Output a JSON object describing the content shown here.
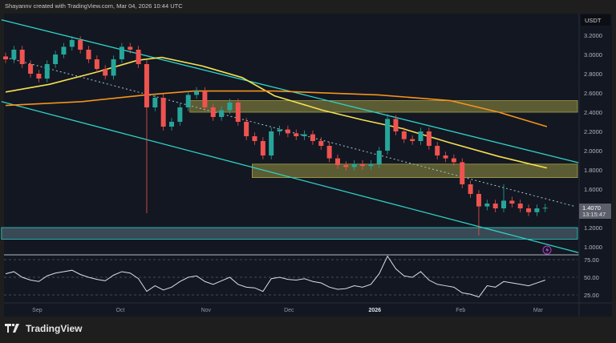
{
  "header": {
    "attribution": "Shayannv created with TradingView.com, Mar 04, 2026 10:44 UTC"
  },
  "footer": {
    "logo_text": "TradingView"
  },
  "colors": {
    "background": "#131722",
    "up": "#26a69a",
    "down": "#ef5350",
    "ma_fast": "#f5e050",
    "ma_slow": "#f7931a",
    "channel": "#2ed3c6",
    "zone": "#7a7a3a",
    "support_zone": "#3e4f5c",
    "rsi": "#d8dde8"
  },
  "chart_data": {
    "type": "candlestick",
    "currency_label": "USDT",
    "start_date": "2025-08-20",
    "candle_interval_days": 3,
    "ylim": [
      0.92,
      3.3
    ],
    "y_ticks": [
      "3.2000",
      "3.0000",
      "2.8000",
      "2.6000",
      "2.4000",
      "2.2000",
      "2.0000",
      "1.8000",
      "1.6000",
      "1.2000",
      "1.0000"
    ],
    "y_tick_values": [
      3.2,
      3.0,
      2.8,
      2.6,
      2.4,
      2.2,
      2.0,
      1.8,
      1.6,
      1.2,
      1.0
    ],
    "x_ticks": [
      {
        "label": "Sep",
        "date": "2025-09-01"
      },
      {
        "label": "Oct",
        "date": "2025-10-01"
      },
      {
        "label": "Nov",
        "date": "2025-11-01"
      },
      {
        "label": "Dec",
        "date": "2025-12-01"
      },
      {
        "label": "2026",
        "date": "2026-01-01",
        "bold": true
      },
      {
        "label": "Feb",
        "date": "2026-02-01"
      },
      {
        "label": "Mar",
        "date": "2026-03-01"
      }
    ],
    "closes": [
      2.95,
      3.05,
      2.9,
      2.8,
      2.75,
      2.9,
      3.0,
      3.08,
      3.15,
      3.05,
      2.95,
      2.85,
      2.78,
      2.95,
      3.08,
      3.05,
      2.9,
      2.45,
      2.55,
      2.25,
      2.3,
      2.45,
      2.58,
      2.62,
      2.45,
      2.35,
      2.42,
      2.5,
      2.3,
      2.15,
      2.1,
      1.95,
      2.2,
      2.22,
      2.18,
      2.15,
      2.17,
      2.1,
      2.05,
      1.92,
      1.85,
      1.83,
      1.86,
      1.84,
      1.86,
      2.0,
      2.33,
      2.2,
      2.12,
      2.1,
      2.2,
      2.05,
      1.95,
      1.92,
      1.88,
      1.65,
      1.55,
      1.42,
      1.45,
      1.4,
      1.48,
      1.45,
      1.4,
      1.36,
      1.4,
      1.407
    ],
    "wick_extremes": [
      {
        "index": 17,
        "low": 1.35
      },
      {
        "index": 57,
        "low": 1.12
      },
      {
        "index": 60,
        "high": 1.65
      },
      {
        "index": 46,
        "high": 2.38
      }
    ],
    "last_price": {
      "value": "1.4070",
      "countdown": "13:15:47"
    },
    "moving_averages": [
      {
        "color": "#f5e050",
        "points": [
          [
            0,
            2.61
          ],
          [
            5.3,
            2.69
          ],
          [
            11.1,
            2.82
          ],
          [
            15.9,
            2.94
          ],
          [
            18.8,
            2.97
          ],
          [
            23.7,
            2.88
          ],
          [
            28.5,
            2.76
          ],
          [
            32.4,
            2.57
          ],
          [
            38.2,
            2.42
          ],
          [
            43,
            2.32
          ],
          [
            47.8,
            2.23
          ],
          [
            53.6,
            2.08
          ],
          [
            59.4,
            1.94
          ],
          [
            65.2,
            1.82
          ]
        ]
      },
      {
        "color": "#f7931a",
        "points": [
          [
            0,
            2.47
          ],
          [
            9.2,
            2.51
          ],
          [
            16.9,
            2.58
          ],
          [
            22.7,
            2.62
          ],
          [
            32.4,
            2.62
          ],
          [
            44.9,
            2.58
          ],
          [
            53.6,
            2.52
          ],
          [
            59.4,
            2.4
          ],
          [
            65.2,
            2.25
          ]
        ]
      }
    ],
    "channel": {
      "upper": [
        [
          -0.5,
          3.36
        ],
        [
          69,
          1.875
        ]
      ],
      "middle_dotted": [
        [
          0,
          2.97
        ],
        [
          68.6,
          1.42
        ]
      ],
      "lower": [
        [
          -0.5,
          2.51
        ],
        [
          69,
          0.94
        ]
      ]
    },
    "zones": [
      {
        "type": "resistance",
        "from_index": 22.2,
        "low": 2.4,
        "high": 2.52
      },
      {
        "type": "resistance",
        "from_index": 29.7,
        "low": 1.72,
        "high": 1.86
      },
      {
        "type": "support",
        "from_index": -0.5,
        "low": 1.08,
        "high": 1.2
      }
    ],
    "rsi": {
      "y_ticks": [
        "75.00",
        "50.00",
        "25.00"
      ],
      "y_tick_values": [
        75,
        50,
        25
      ],
      "values": [
        55,
        58,
        50,
        46,
        44,
        52,
        56,
        58,
        60,
        54,
        50,
        47,
        45,
        53,
        58,
        56,
        48,
        30,
        38,
        32,
        36,
        44,
        50,
        52,
        44,
        40,
        45,
        50,
        40,
        36,
        35,
        30,
        48,
        50,
        47,
        46,
        48,
        44,
        42,
        36,
        33,
        34,
        38,
        36,
        40,
        55,
        80,
        62,
        52,
        50,
        58,
        46,
        40,
        38,
        36,
        28,
        26,
        22,
        38,
        36,
        44,
        42,
        40,
        38,
        42,
        46
      ]
    }
  }
}
